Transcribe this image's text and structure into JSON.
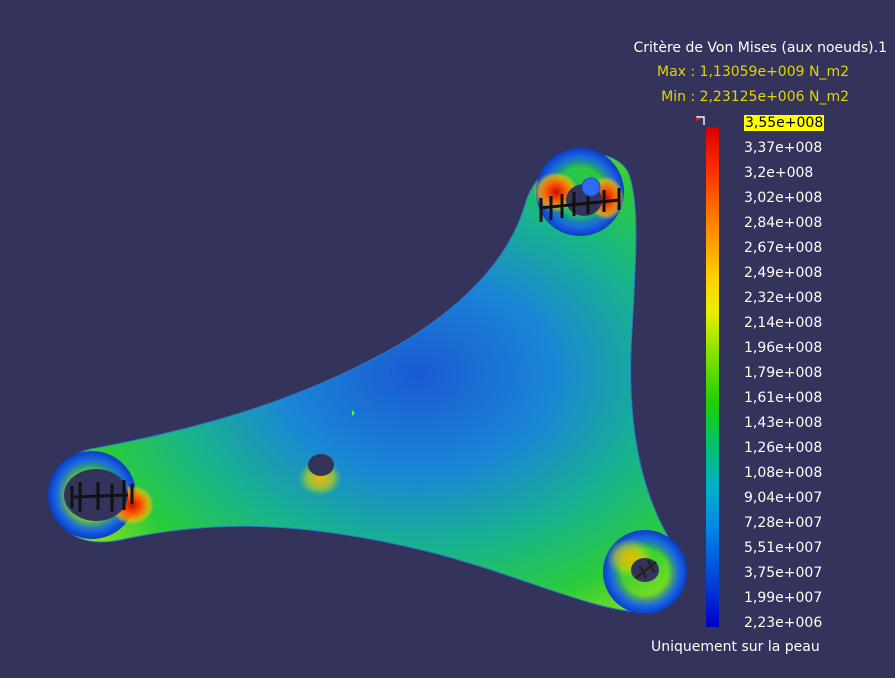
{
  "colors": {
    "background": "#33335c",
    "title": "#ffffff",
    "extremes": "#e6d400",
    "highlight": "#ffff00"
  },
  "legend": {
    "title": "Critère de Von Mises (aux noeuds).1",
    "max": "Max : 1,13059e+009 N_m2",
    "min": "Min : 2,23125e+006 N_m2",
    "ticks": [
      "3,55e+008",
      "3,37e+008",
      "3,2e+008",
      "3,02e+008",
      "2,84e+008",
      "2,67e+008",
      "2,49e+008",
      "2,32e+008",
      "2,14e+008",
      "1,96e+008",
      "1,79e+008",
      "1,61e+008",
      "1,43e+008",
      "1,26e+008",
      "1,08e+008",
      "9,04e+007",
      "7,28e+007",
      "5,51e+007",
      "3,75e+007",
      "1,99e+007",
      "2,23e+006"
    ],
    "footer": "Uniquement sur la peau"
  },
  "model": {
    "part": "triangular-bracket",
    "holes": 4,
    "clamped_holes": [
      "top-right",
      "left",
      "bottom-right"
    ],
    "load_point_icon": "blue-sphere"
  }
}
